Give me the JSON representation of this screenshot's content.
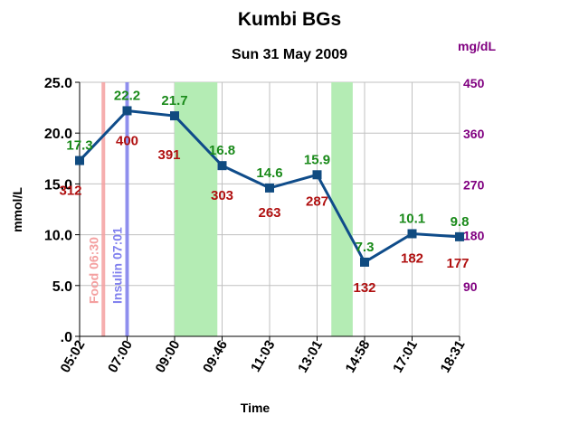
{
  "chart_data": {
    "type": "line",
    "title": "Kumbi BGs",
    "subtitle": "Sun 31 May 2009",
    "xlabel": "Time",
    "ylabel": "mmol/L",
    "y2label": "mg/dL",
    "categories": [
      "05:02",
      "07:00",
      "09:00",
      "09:46",
      "11:03",
      "13:01",
      "14:58",
      "17:01",
      "18:31"
    ],
    "series": [
      {
        "values": [
          17.3,
          22.2,
          21.7,
          16.8,
          14.6,
          15.9,
          7.3,
          10.1,
          9.8
        ]
      }
    ],
    "value_labels": [
      "17.3",
      "22.2",
      "21.7",
      "16.8",
      "14.6",
      "15.9",
      "7.3",
      "10.1",
      "9.8"
    ],
    "mgdl_labels": [
      "312",
      "400",
      "391",
      "303",
      "263",
      "287",
      "132",
      "182",
      "177"
    ],
    "ylim": [
      0,
      25
    ],
    "y_ticks": [
      ".0",
      "5.0",
      "10.0",
      "15.0",
      "20.0",
      "25.0"
    ],
    "y2_ticks": [
      "90",
      "180",
      "270",
      "360",
      "450"
    ],
    "grid": true,
    "events": [
      {
        "label": "Food 06:30",
        "x": 0.5,
        "color": "#f4a0a0"
      },
      {
        "label": "Insulin 07:01",
        "x": 1.0,
        "color": "#8080ee"
      }
    ],
    "highlight_bands": [
      {
        "from": 2.0,
        "to": 2.9,
        "color": "#b4ecb4"
      },
      {
        "from": 5.3,
        "to": 5.75,
        "color": "#b4ecb4"
      }
    ],
    "colors": {
      "line": "#0f4c8a",
      "marker": "#104b80",
      "value_label": "#1a8a1a",
      "mgdl_label": "#b01010",
      "y2_axis": "#800080",
      "grid": "#c0c0c0"
    }
  }
}
